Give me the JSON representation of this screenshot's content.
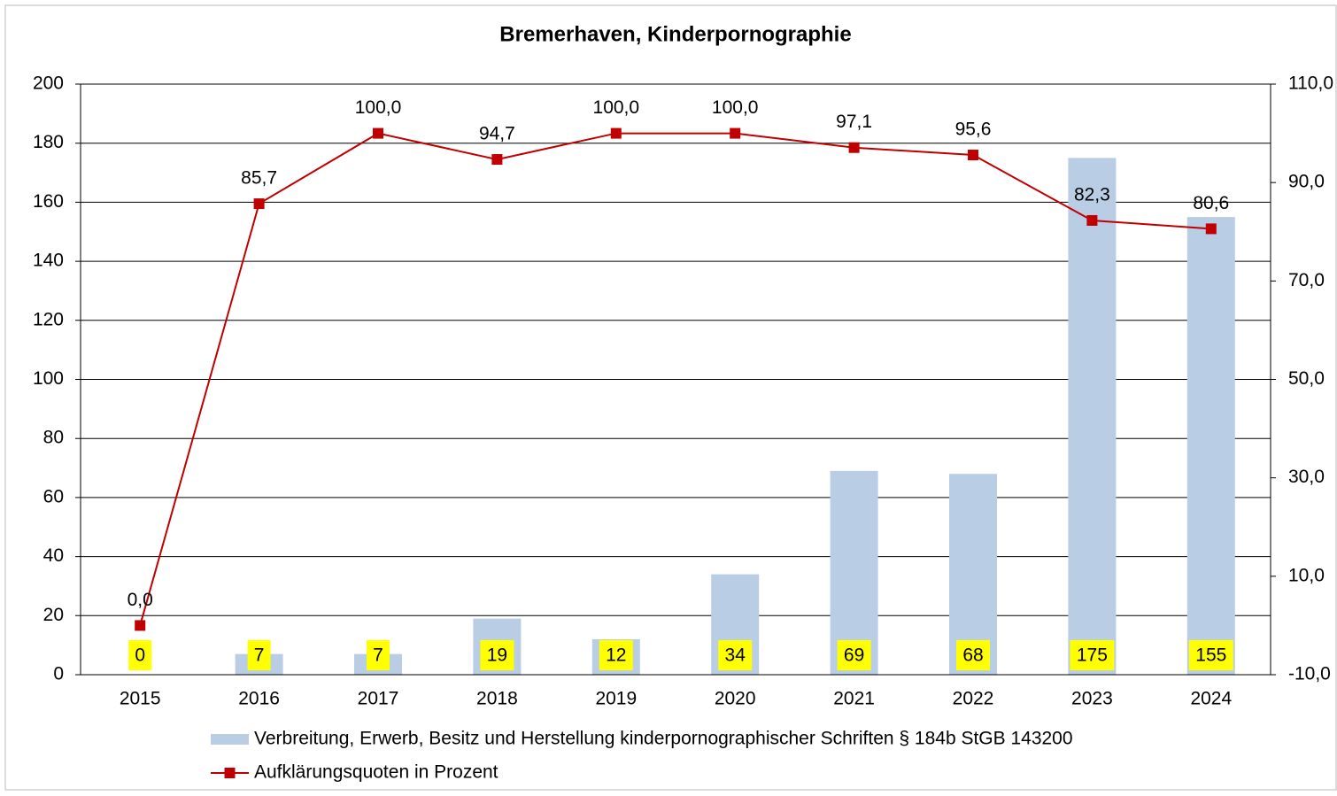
{
  "chart_data": {
    "type": "bar_line",
    "title": "Bremerhaven, Kinderpornographie",
    "categories": [
      "2015",
      "2016",
      "2017",
      "2018",
      "2019",
      "2020",
      "2021",
      "2022",
      "2023",
      "2024"
    ],
    "series": [
      {
        "name": "Verbreitung, Erwerb, Besitz und Herstellung kinderpornographischer Schriften § 184b StGB 143200",
        "type": "bar",
        "color": "#b9cde5",
        "label_color": "#ffff00",
        "values": [
          0,
          7,
          7,
          19,
          12,
          34,
          69,
          68,
          175,
          155
        ]
      },
      {
        "name": "Aufklärungsquoten in Prozent",
        "type": "line",
        "axis": "y2",
        "color": "#c00000",
        "values": [
          0.0,
          85.7,
          100.0,
          94.7,
          100.0,
          100.0,
          97.1,
          95.6,
          82.3,
          80.6
        ],
        "value_labels": [
          "0,0",
          "85,7",
          "100,0",
          "94,7",
          "100,0",
          "100,0",
          "97,1",
          "95,6",
          "82,3",
          "80,6"
        ]
      }
    ],
    "ylim": [
      0,
      200
    ],
    "yticks": [
      0,
      20,
      40,
      60,
      80,
      100,
      120,
      140,
      160,
      180,
      200
    ],
    "y2lim": [
      -10,
      110
    ],
    "y2ticks": [
      {
        "value": -10,
        "label": "-10,0"
      },
      {
        "value": 10,
        "label": "10,0"
      },
      {
        "value": 30,
        "label": "30,0"
      },
      {
        "value": 50,
        "label": "50,0"
      },
      {
        "value": 70,
        "label": "70,0"
      },
      {
        "value": 90,
        "label": "90,0"
      },
      {
        "value": 110,
        "label": "110,0"
      }
    ],
    "grid": true,
    "legend": "bottom"
  }
}
